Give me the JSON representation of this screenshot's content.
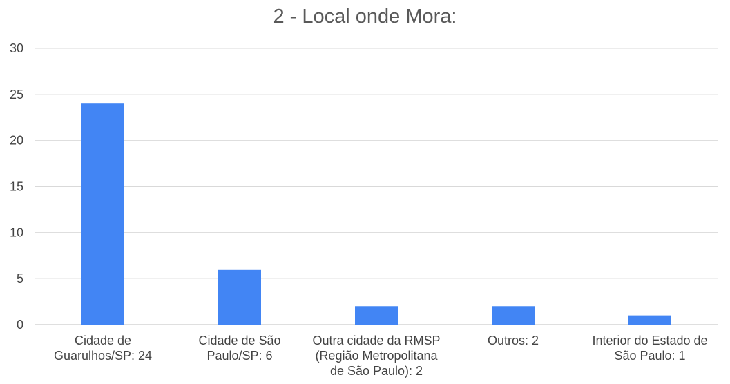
{
  "chart_data": {
    "type": "bar",
    "title": "2 - Local onde Mora:",
    "categories": [
      [
        "Cidade de",
        "Guarulhos/SP: 24"
      ],
      [
        "Cidade de São",
        "Paulo/SP: 6"
      ],
      [
        "Outra cidade da RMSP",
        "(Região Metropolitana",
        "de São Paulo): 2"
      ],
      [
        "Outros: 2"
      ],
      [
        "Interior do Estado de",
        "São Paulo: 1"
      ]
    ],
    "values": [
      24,
      6,
      2,
      2,
      1
    ],
    "ylim": [
      0,
      30
    ],
    "yticks": [
      "0",
      "5",
      "10",
      "15",
      "20",
      "25",
      "30"
    ],
    "grid": true,
    "legend": "none",
    "colors": {
      "bar": "#4285f4",
      "grid": "#d9d9d9",
      "axis": "#bfbfbf"
    }
  }
}
